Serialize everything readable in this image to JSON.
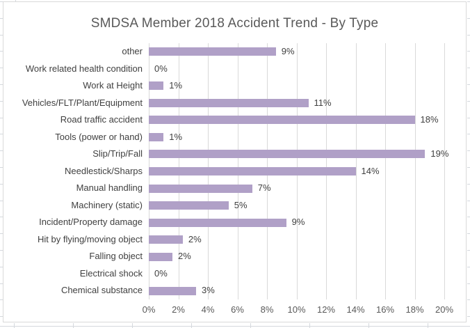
{
  "chart_data": {
    "type": "bar",
    "orientation": "horizontal",
    "title": "SMDSA Member 2018 Accident Trend - By Type",
    "categories": [
      "other",
      "Work related health condition",
      "Work at Height",
      "Vehicles/FLT/Plant/Equipment",
      "Road traffic accident",
      "Tools (power or hand)",
      "Slip/Trip/Fall",
      "Needlestick/Sharps",
      "Manual handling",
      "Machinery (static)",
      "Incident/Property damage",
      "Hit by flying/moving object",
      "Falling object",
      "Electrical shock",
      "Chemical substance"
    ],
    "values": [
      9,
      0,
      1,
      11,
      18,
      1,
      19,
      14,
      7,
      5,
      9,
      2,
      2,
      0,
      3
    ],
    "value_labels": [
      "9%",
      "0%",
      "1%",
      "11%",
      "18%",
      "1%",
      "19%",
      "14%",
      "7%",
      "5%",
      "9%",
      "2%",
      "2%",
      "0%",
      "3%"
    ],
    "bar_render_pct": [
      8.6,
      0,
      1.0,
      10.8,
      18.0,
      1.0,
      18.7,
      14.0,
      7.0,
      5.4,
      9.3,
      2.3,
      1.6,
      0,
      3.2
    ],
    "xlabel": "",
    "ylabel": "",
    "xlim": [
      0,
      20
    ],
    "x_ticks": [
      "0%",
      "2%",
      "4%",
      "6%",
      "8%",
      "10%",
      "12%",
      "14%",
      "16%",
      "18%",
      "20%"
    ],
    "x_tick_values": [
      0,
      2,
      4,
      6,
      8,
      10,
      12,
      14,
      16,
      18,
      20
    ],
    "grid": "vertical-on",
    "legend": "none",
    "data_labels": "outside-end",
    "colors": {
      "bar_fill": "#b0a0c7",
      "gridline": "#d9d9d9",
      "chart_border": "#d9d9d9",
      "title_text": "#595959",
      "category_text": "#3f3f3f",
      "data_label_text": "#3f3f3f",
      "tick_text": "#595959",
      "sheet_gridline": "#d4d8dd",
      "background": "#ffffff"
    }
  }
}
